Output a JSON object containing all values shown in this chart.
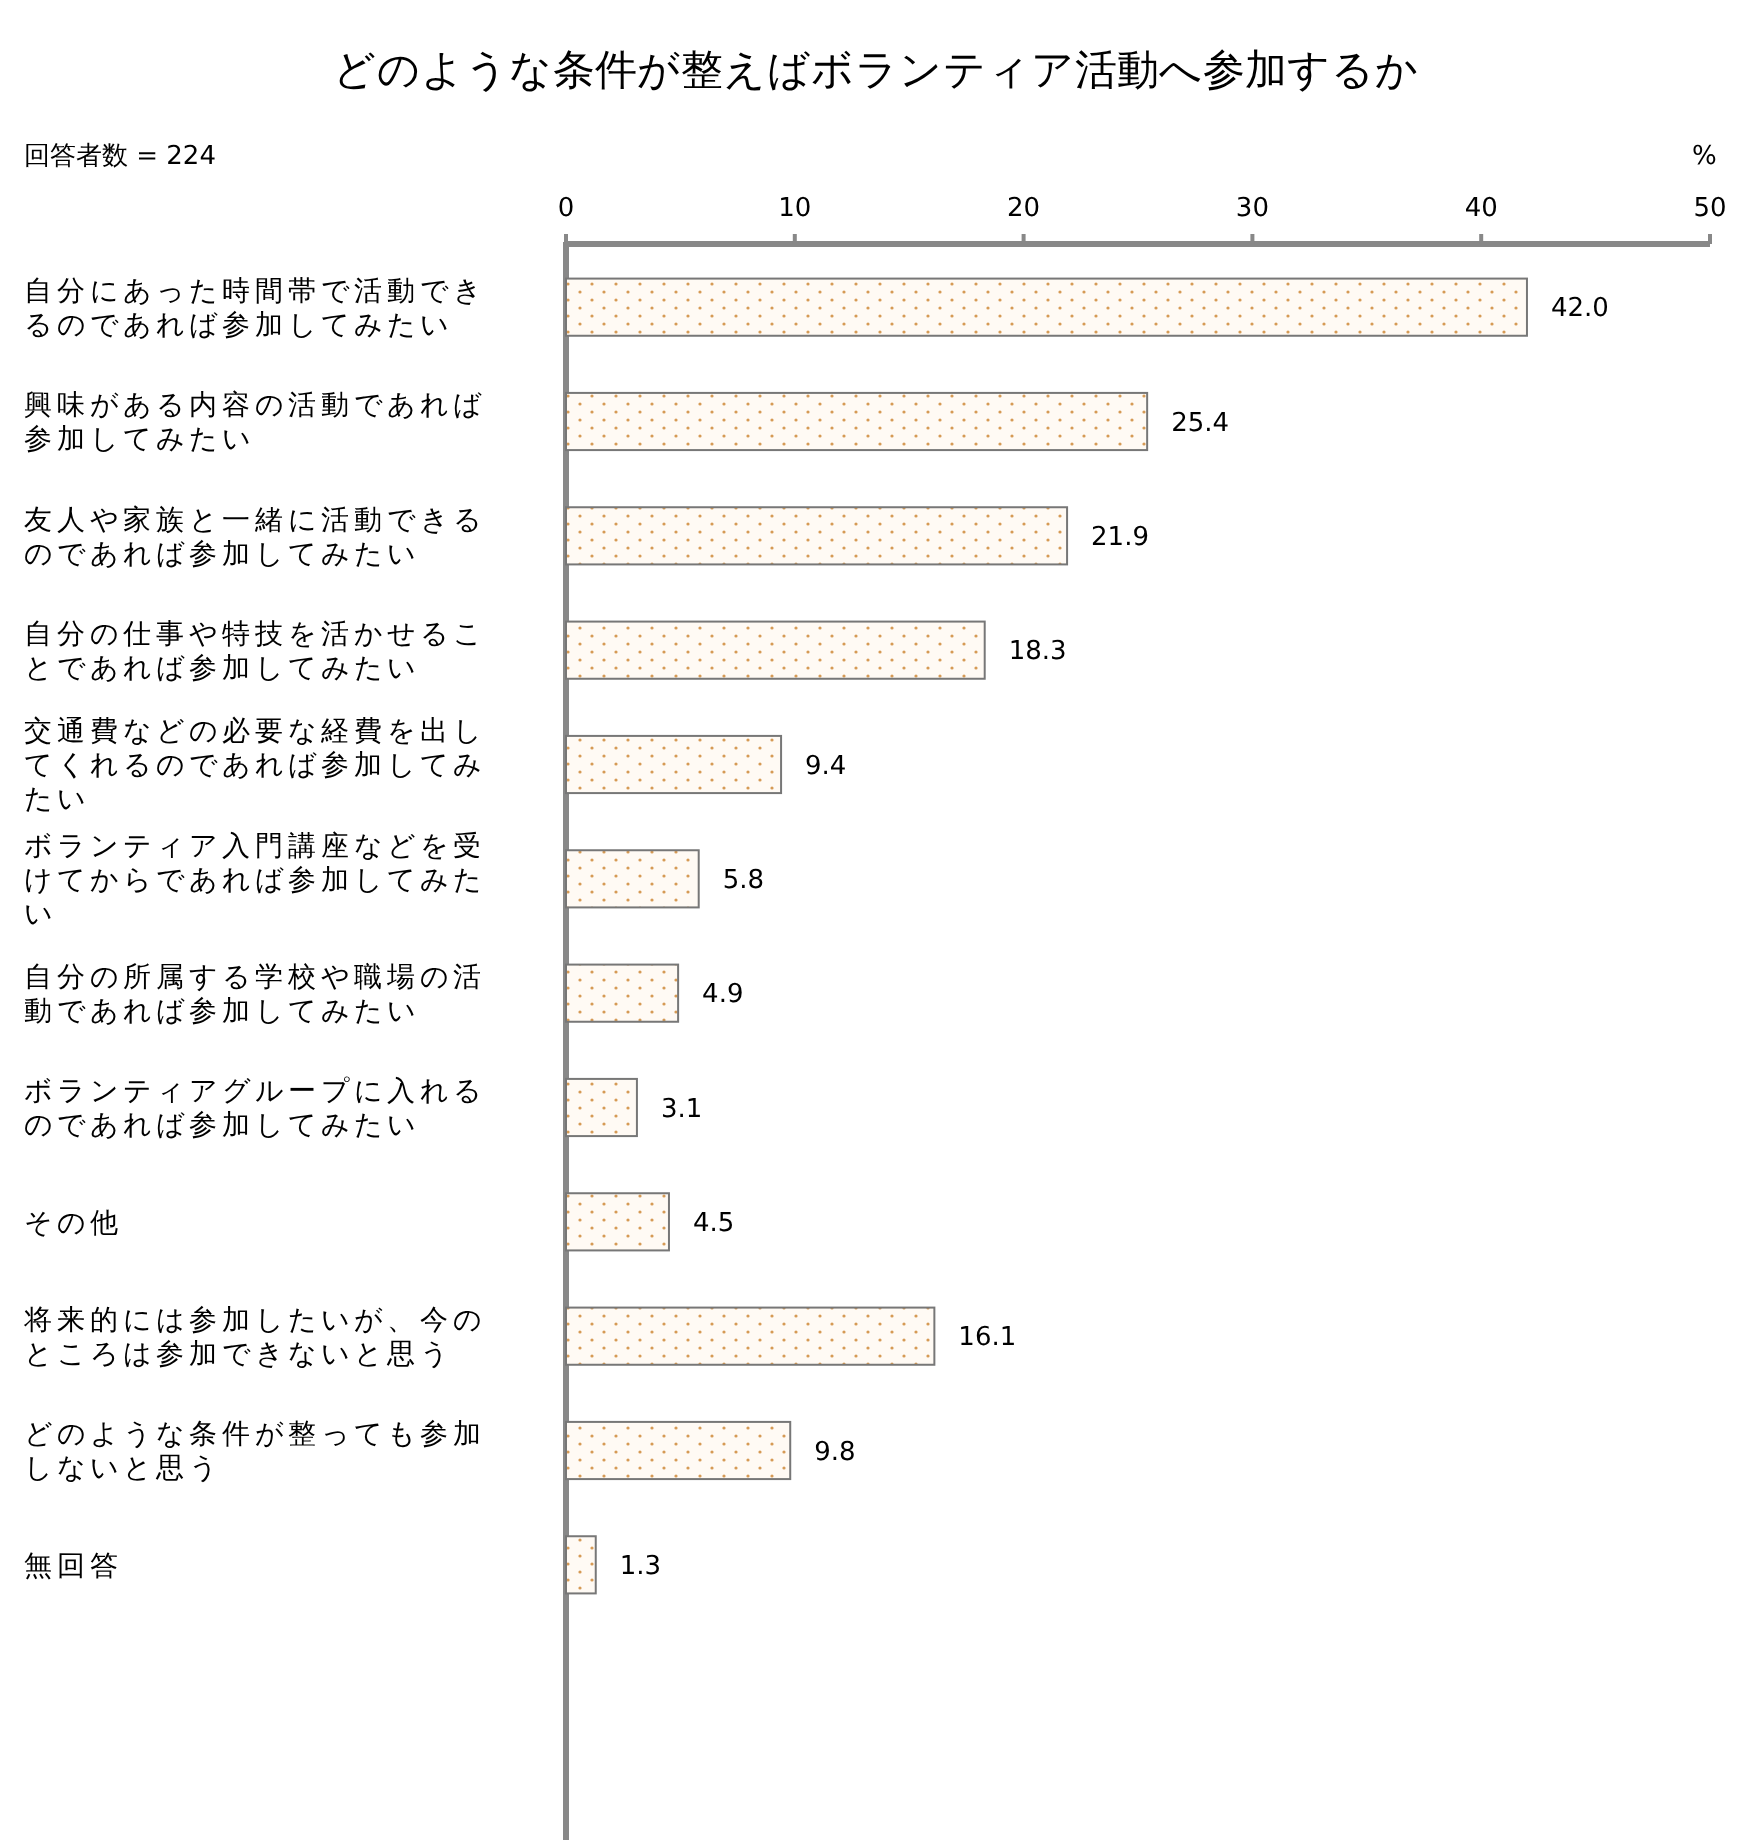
{
  "chart_data": {
    "type": "bar",
    "orientation": "horizontal",
    "title": "どのような条件が整えばボランティア活動へ参加するか",
    "xlabel": "%",
    "annotations": [
      "回答者数 = 224"
    ],
    "categories": [
      "自分にあった時間帯で活動できるのであれば参加してみたい",
      "興味がある内容の活動であれば参加してみたい",
      "友人や家族と一緒に活動できるのであれば参加してみたい",
      "自分の仕事や特技を活かせることであれば参加してみたい",
      "交通費などの必要な経費を出してくれるのであれば参加してみたい",
      "ボランティア入門講座などを受けてからであれば参加してみたい",
      "自分の所属する学校や職場の活動であれば参加してみたい",
      "ボランティアグループに入れるのであれば参加してみたい",
      "その他",
      "将来的には参加したいが、今のところは参加できないと思う",
      "どのような条件が整っても参加しないと思う",
      "無回答"
    ],
    "values": [
      42.0,
      25.4,
      21.9,
      18.3,
      9.4,
      5.8,
      4.9,
      3.1,
      4.5,
      16.1,
      9.8,
      1.3
    ],
    "value_labels": [
      "42.0",
      "25.4",
      "21.9",
      "18.3",
      "9.4",
      "5.8",
      "4.9",
      "3.1",
      "4.5",
      "16.1",
      "9.8",
      "1.3"
    ],
    "color": "#777777",
    "xlim": [
      0,
      50
    ],
    "xticks": [
      0,
      10,
      20,
      30,
      40,
      50
    ],
    "grid": false
  }
}
